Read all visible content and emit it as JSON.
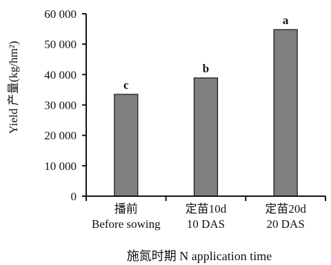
{
  "chart_data": {
    "type": "bar",
    "categories": [
      {
        "cn": "播前",
        "en": "Before sowing"
      },
      {
        "cn": "定苗10d",
        "en": "10 DAS"
      },
      {
        "cn": "定苗20d",
        "en": "20 DAS"
      }
    ],
    "values": [
      33500,
      38900,
      54800
    ],
    "labels": [
      "c",
      "b",
      "a"
    ],
    "ylim": [
      0,
      60000
    ],
    "yticks": [
      {
        "value": 0,
        "label": "0"
      },
      {
        "value": 10000,
        "label": "10 000"
      },
      {
        "value": 20000,
        "label": "20 000"
      },
      {
        "value": 30000,
        "label": "30 000"
      },
      {
        "value": 40000,
        "label": "40 000"
      },
      {
        "value": 50000,
        "label": "50 000"
      },
      {
        "value": 60000,
        "label": "60 000"
      }
    ],
    "xlabel": "施氮时期 N application time",
    "ylabel": "Yield 产量(kg/hm²)",
    "grid": false,
    "colors": {
      "bar": "#7f7f7f",
      "axis": "#111111"
    }
  }
}
